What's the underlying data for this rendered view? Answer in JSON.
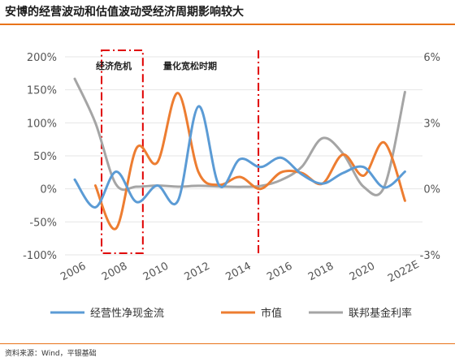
{
  "title": "安博的经营波动和估值波动受经济周期影响较大",
  "source": "资料来源：Wind，平银基础",
  "chart_data": {
    "type": "line",
    "x_ticks": [
      "2006",
      "2008",
      "2010",
      "2012",
      "2014",
      "2016",
      "2018",
      "2020",
      "2022E"
    ],
    "y_left_ticks": [
      "200%",
      "150%",
      "100%",
      "50%",
      "0%",
      "-50%",
      "-100%"
    ],
    "y_right_ticks": [
      "6%",
      "3%",
      "0%",
      "-3%"
    ],
    "ylim_left": [
      -100,
      200
    ],
    "ylim_right": [
      -3,
      6
    ],
    "annotations": [
      "经济危机",
      "量化宽松时期"
    ],
    "legend_position": "bottom",
    "series": [
      {
        "name": "经营性净现金流",
        "axis": "left",
        "color": "#5b9bd5",
        "x": [
          2006,
          2007,
          2008,
          2009,
          2010,
          2011,
          2012,
          2013,
          2014,
          2015,
          2016,
          2017,
          2018,
          2019,
          2020,
          2021,
          2022
        ],
        "values": [
          14,
          -28,
          26,
          -20,
          5,
          -18,
          125,
          5,
          45,
          33,
          47,
          22,
          8,
          24,
          33,
          2,
          26
        ]
      },
      {
        "name": "市值",
        "axis": "left",
        "color": "#ed7d31",
        "x": [
          2007,
          2008,
          2009,
          2010,
          2011,
          2012,
          2013,
          2014,
          2015,
          2016,
          2017,
          2018,
          2019,
          2020,
          2021,
          2022
        ],
        "values": [
          5,
          -60,
          62,
          40,
          145,
          25,
          6,
          18,
          0,
          25,
          24,
          8,
          52,
          20,
          70,
          -18
        ]
      },
      {
        "name": "联邦基金利率",
        "axis": "right",
        "color": "#a5a5a5",
        "x": [
          2006,
          2007,
          2008,
          2009,
          2010,
          2011,
          2012,
          2013,
          2014,
          2015,
          2016,
          2017,
          2018,
          2019,
          2020,
          2021,
          2022
        ],
        "values": [
          5.0,
          3.0,
          0.2,
          0.1,
          0.15,
          0.1,
          0.14,
          0.11,
          0.09,
          0.13,
          0.4,
          1.0,
          2.3,
          1.6,
          0.09,
          0.1,
          4.4
        ]
      }
    ]
  }
}
